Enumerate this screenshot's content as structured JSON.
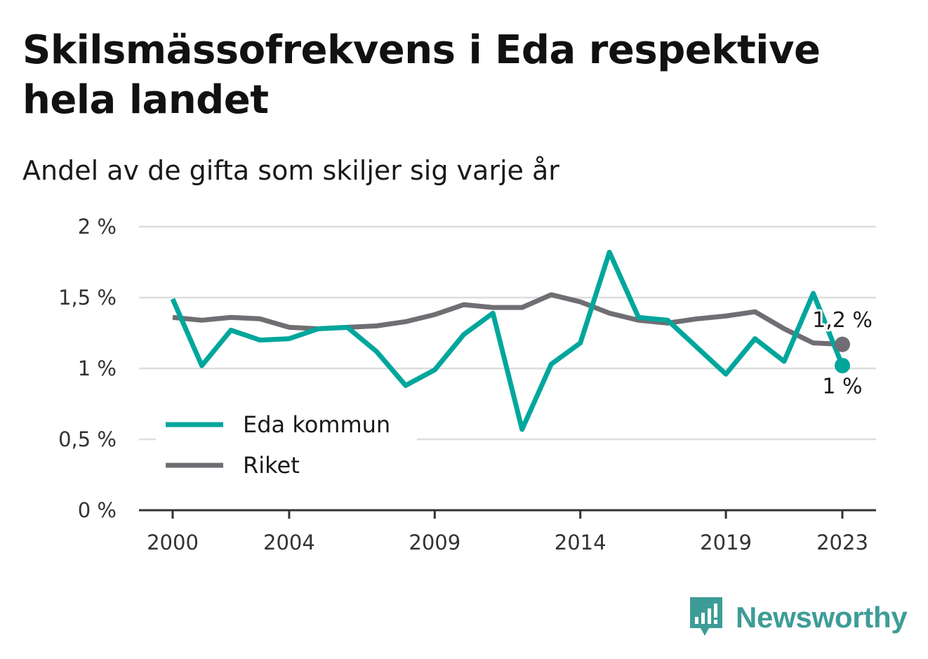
{
  "header": {
    "title": "Skilsmässofrekvens i Eda respektive hela landet",
    "subtitle": "Andel av de gifta som skiljer sig varje år"
  },
  "chart_data": {
    "type": "line",
    "title": "Skilsmässofrekvens i Eda respektive hela landet",
    "subtitle": "Andel av de gifta som skiljer sig varje år",
    "xlabel": "",
    "ylabel": "",
    "x": [
      2000,
      2001,
      2002,
      2003,
      2004,
      2005,
      2006,
      2007,
      2008,
      2009,
      2010,
      2011,
      2012,
      2013,
      2014,
      2015,
      2016,
      2017,
      2018,
      2019,
      2020,
      2021,
      2022,
      2023
    ],
    "x_ticks": [
      2000,
      2004,
      2009,
      2014,
      2019,
      2023
    ],
    "x_tick_labels": [
      "2000",
      "2004",
      "2009",
      "2014",
      "2019",
      "2023"
    ],
    "y_ticks": [
      0,
      0.5,
      1,
      1.5,
      2
    ],
    "y_tick_labels": [
      "0 %",
      "0,5 %",
      "1 %",
      "1,5 %",
      "2 %"
    ],
    "xlim": [
      2000,
      2023
    ],
    "ylim": [
      0,
      2
    ],
    "grid": true,
    "legend_position": "bottom-left",
    "series": [
      {
        "name": "Eda kommun",
        "color": "#00a69c",
        "values": [
          1.49,
          1.02,
          1.27,
          1.2,
          1.21,
          1.28,
          1.29,
          1.12,
          0.88,
          0.99,
          1.24,
          1.39,
          0.57,
          1.03,
          1.18,
          1.82,
          1.36,
          1.34,
          1.15,
          0.96,
          1.21,
          1.05,
          1.53,
          1.02
        ],
        "end_label": "1 %"
      },
      {
        "name": "Riket",
        "color": "#706e73",
        "values": [
          1.36,
          1.34,
          1.36,
          1.35,
          1.29,
          1.28,
          1.29,
          1.3,
          1.33,
          1.38,
          1.45,
          1.43,
          1.43,
          1.52,
          1.47,
          1.39,
          1.34,
          1.32,
          1.35,
          1.37,
          1.4,
          1.28,
          1.18,
          1.17
        ],
        "end_label": "1,2 %"
      }
    ]
  },
  "brand": {
    "name": "Newsworthy",
    "icon": "bar-chart-speech-bubble-icon",
    "color": "#3e9c97"
  }
}
